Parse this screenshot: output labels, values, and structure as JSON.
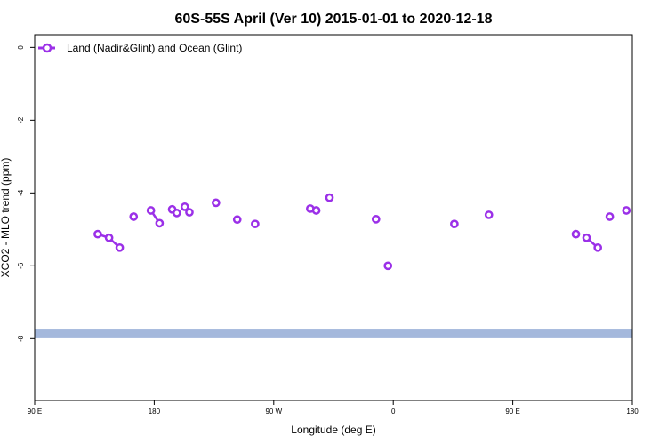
{
  "chart_data": {
    "type": "line",
    "title": "60S-55S April (Ver 10)   2015-01-01 to 2020-12-18",
    "xlabel": "Longitude (deg E)",
    "ylabel": "XCO2 - MLO trend (ppm)",
    "x_ticks": [
      {
        "pos": 90,
        "label": "90 E"
      },
      {
        "pos": 180,
        "label": "180"
      },
      {
        "pos": 270,
        "label": "90 W"
      },
      {
        "pos": 360,
        "label": "0"
      },
      {
        "pos": 450,
        "label": "90 E"
      },
      {
        "pos": 540,
        "label": "180"
      }
    ],
    "xlim": [
      90,
      540
    ],
    "y_ticks": [
      0,
      -2,
      -4,
      -6,
      -8
    ],
    "ylim": [
      -9.7,
      0.35
    ],
    "legend": {
      "position": "top-left",
      "label": "Land (Nadir&Glint) and Ocean (Glint)"
    },
    "colors": {
      "series": "#9b30e8",
      "band": "#a4b8dc"
    },
    "band": {
      "y_center": -7.87,
      "y_half": 0.12
    },
    "series": [
      {
        "name": "Land (Nadir&Glint) and Ocean (Glint)",
        "segments": [
          [
            [
              137.5,
              -5.13
            ],
            [
              146,
              -5.23
            ],
            [
              154,
              -5.5
            ]
          ],
          [
            [
              164.5,
              -4.65
            ]
          ],
          [
            [
              177.5,
              -4.48
            ],
            [
              184,
              -4.83
            ]
          ],
          [
            [
              193.5,
              -4.45
            ],
            [
              197,
              -4.55
            ]
          ],
          [
            [
              203,
              -4.38
            ],
            [
              206.5,
              -4.53
            ]
          ],
          [
            [
              226.5,
              -4.27
            ]
          ],
          [
            [
              242.5,
              -4.73
            ]
          ],
          [
            [
              256,
              -4.85
            ]
          ],
          [
            [
              297.5,
              -4.43
            ],
            [
              302,
              -4.48
            ]
          ],
          [
            [
              312,
              -4.13
            ]
          ],
          [
            [
              347,
              -4.72
            ]
          ],
          [
            [
              356,
              -6.0
            ]
          ],
          [
            [
              406,
              -4.85
            ]
          ],
          [
            [
              432,
              -4.6
            ]
          ],
          [
            [
              497.5,
              -5.13
            ]
          ],
          [
            [
              505.5,
              -5.23
            ],
            [
              514,
              -5.5
            ]
          ],
          [
            [
              523,
              -4.65
            ]
          ],
          [
            [
              535.5,
              -4.48
            ]
          ]
        ]
      }
    ]
  }
}
